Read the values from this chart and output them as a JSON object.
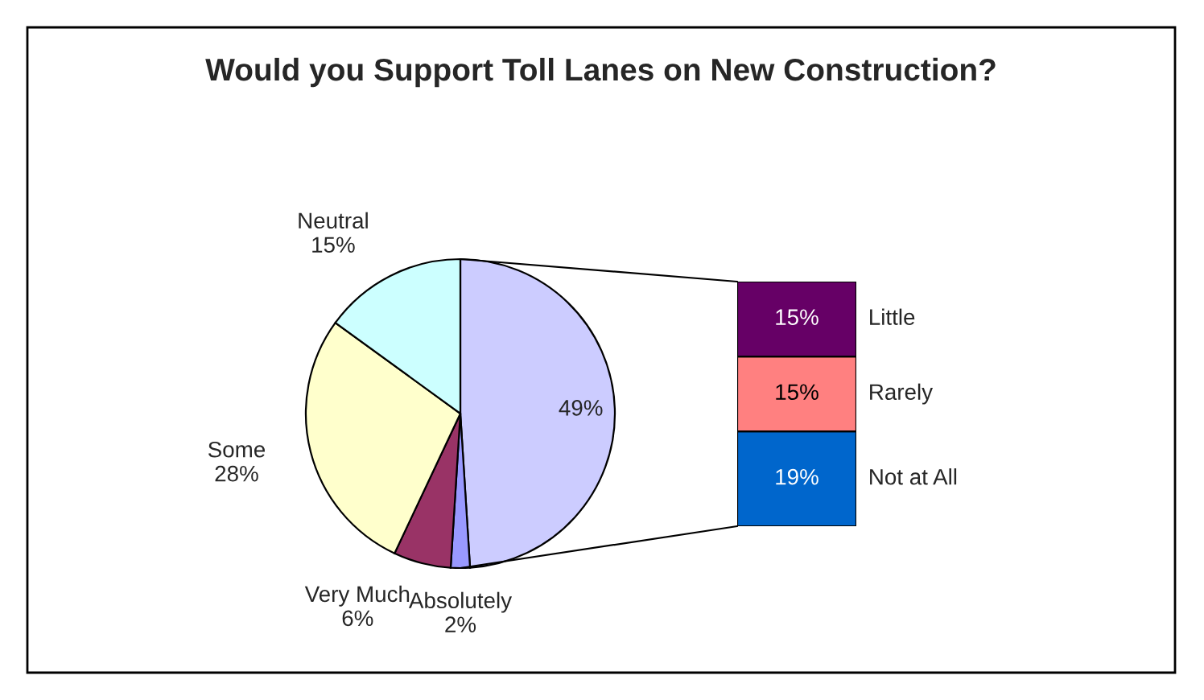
{
  "chart_data": [
    {
      "type": "pie",
      "title": "Would you Support Toll Lanes on New Construction?",
      "categories": [
        null,
        "Absolutely",
        "Very Much",
        "Some",
        "Neutral"
      ],
      "values": [
        49,
        2,
        6,
        28,
        15
      ],
      "value_labels": [
        "49%",
        "2%",
        "6%",
        "28%",
        "15%"
      ],
      "colors": [
        "#ccccff",
        "#9999ff",
        "#993366",
        "#ffffcc",
        "#ccffff"
      ]
    },
    {
      "type": "bar",
      "stacked": true,
      "categories": [
        null
      ],
      "series": [
        {
          "name": "Not at All",
          "color": "#0066cc",
          "values": [
            19
          ],
          "value_labels": [
            "19%"
          ]
        },
        {
          "name": "Rarely",
          "color": "#ff8080",
          "values": [
            15
          ],
          "value_labels": [
            "15%"
          ]
        },
        {
          "name": "Little",
          "color": "#660066",
          "values": [
            15
          ],
          "value_labels": [
            "15%"
          ]
        }
      ]
    }
  ]
}
